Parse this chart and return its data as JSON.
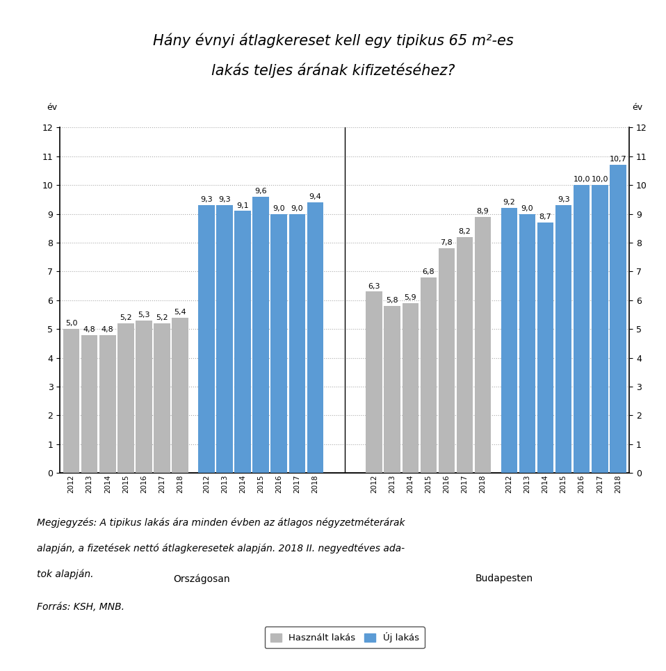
{
  "title_line1": "Hány évnyi átlagkereset kell egy tipikus 65 m²-es",
  "title_line2": "lakás teljes árának kifizetéséhez?",
  "ylabel": "év",
  "ylim": [
    0,
    12
  ],
  "yticks": [
    0,
    1,
    2,
    3,
    4,
    5,
    6,
    7,
    8,
    9,
    10,
    11,
    12
  ],
  "years": [
    2012,
    2013,
    2014,
    2015,
    2016,
    2017,
    2018
  ],
  "orsz_haszn": [
    5.0,
    4.8,
    4.8,
    5.2,
    5.3,
    5.2,
    5.4
  ],
  "orsz_uj": [
    9.3,
    9.3,
    9.1,
    9.6,
    9.0,
    9.0,
    9.4
  ],
  "bud_haszn": [
    6.3,
    5.8,
    5.9,
    6.8,
    7.8,
    8.2,
    8.9
  ],
  "bud_uj": [
    9.2,
    9.0,
    8.7,
    9.3,
    10.0,
    10.0,
    10.7
  ],
  "color_haszn": "#b8b8b8",
  "color_uj": "#5b9bd5",
  "legend_haszn": "Használt lakás",
  "legend_uj": "Új lakás",
  "label_orsz": "Országosan",
  "label_bud": "Budapesten",
  "note_line1": "Megjegyzés: A tipikus lakás ára minden évben az átlagos négyzetméterárak",
  "note_line2": "alapján, a fizetések nettó átlagkeresetek alapján. 2018 II. negyedtéves ada-",
  "note_line3": "tok alapján.",
  "source": "Forrás: KSH, MNB.",
  "background_color": "#ffffff"
}
